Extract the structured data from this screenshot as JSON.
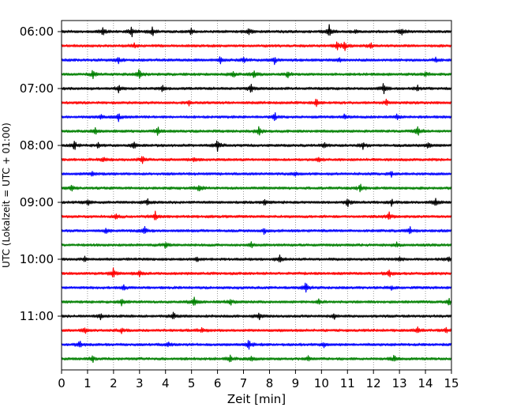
{
  "chart_data": {
    "type": "line",
    "title": "",
    "xlabel": "Zeit  [min]",
    "ylabel": "UTC (Lokalzeit = UTC + 01:00)",
    "xlim": [
      0,
      15
    ],
    "x_ticks": [
      0,
      1,
      2,
      3,
      4,
      5,
      6,
      7,
      8,
      9,
      10,
      11,
      12,
      13,
      14,
      15
    ],
    "x_tick_labels": [
      "0",
      "1",
      "2",
      "3",
      "4",
      "5",
      "6",
      "7",
      "8",
      "9",
      "10",
      "11",
      "12",
      "13",
      "14",
      "15"
    ],
    "x_grid": "dotted vertical lines at every minute",
    "y_tick_labels": [
      "06:00",
      "07:00",
      "08:00",
      "09:00",
      "10:00",
      "11:00"
    ],
    "y_tick_rows": [
      0,
      4,
      8,
      12,
      16,
      20
    ],
    "row_minutes": 15,
    "color_cycle": [
      "#000000",
      "#ff0000",
      "#0000ff",
      "#008000"
    ],
    "traces": [
      {
        "start": "06:00",
        "color": "#000000",
        "events": [
          [
            1.6,
            0.5
          ],
          [
            2.7,
            0.7
          ],
          [
            3.5,
            0.5
          ],
          [
            5.0,
            0.4
          ],
          [
            7.2,
            0.6
          ],
          [
            10.3,
            0.9
          ],
          [
            11.3,
            0.3
          ],
          [
            13.1,
            0.5
          ]
        ]
      },
      {
        "start": "06:15",
        "color": "#ff0000",
        "events": [
          [
            2.8,
            0.3
          ],
          [
            10.6,
            0.6
          ],
          [
            10.9,
            0.5
          ],
          [
            11.9,
            0.3
          ]
        ]
      },
      {
        "start": "06:30",
        "color": "#0000ff",
        "events": [
          [
            2.2,
            0.5
          ],
          [
            6.1,
            0.4
          ],
          [
            7.0,
            0.3
          ],
          [
            8.2,
            0.5
          ],
          [
            10.7,
            0.3
          ],
          [
            14.4,
            0.3
          ]
        ]
      },
      {
        "start": "06:45",
        "color": "#008000",
        "events": [
          [
            1.2,
            0.5
          ],
          [
            3.0,
            0.7
          ],
          [
            6.6,
            0.4
          ],
          [
            7.4,
            0.5
          ],
          [
            8.7,
            0.4
          ],
          [
            14.0,
            0.4
          ]
        ]
      },
      {
        "start": "07:00",
        "color": "#000000",
        "events": [
          [
            2.2,
            0.5
          ],
          [
            3.9,
            0.4
          ],
          [
            7.3,
            0.6
          ],
          [
            12.4,
            0.7
          ],
          [
            13.7,
            0.3
          ]
        ]
      },
      {
        "start": "07:15",
        "color": "#ff0000",
        "events": [
          [
            4.9,
            0.3
          ],
          [
            9.8,
            0.5
          ],
          [
            12.5,
            0.4
          ]
        ]
      },
      {
        "start": "07:30",
        "color": "#0000ff",
        "events": [
          [
            1.5,
            0.3
          ],
          [
            2.2,
            0.5
          ],
          [
            8.2,
            0.6
          ],
          [
            10.9,
            0.3
          ],
          [
            12.9,
            0.4
          ]
        ]
      },
      {
        "start": "07:45",
        "color": "#008000",
        "events": [
          [
            1.3,
            0.4
          ],
          [
            3.7,
            0.5
          ],
          [
            7.6,
            0.7
          ],
          [
            13.7,
            0.6
          ]
        ]
      },
      {
        "start": "08:00",
        "color": "#000000",
        "events": [
          [
            0.5,
            0.6
          ],
          [
            1.4,
            0.3
          ],
          [
            2.8,
            0.5
          ],
          [
            6.0,
            0.7
          ],
          [
            10.1,
            0.3
          ],
          [
            11.6,
            0.4
          ],
          [
            14.1,
            0.4
          ]
        ]
      },
      {
        "start": "08:15",
        "color": "#ff0000",
        "events": [
          [
            1.6,
            0.3
          ],
          [
            3.1,
            0.6
          ],
          [
            5.1,
            0.3
          ],
          [
            9.9,
            0.4
          ]
        ]
      },
      {
        "start": "08:30",
        "color": "#0000ff",
        "events": [
          [
            1.2,
            0.3
          ],
          [
            9.0,
            0.3
          ],
          [
            12.7,
            0.3
          ]
        ]
      },
      {
        "start": "08:45",
        "color": "#008000",
        "events": [
          [
            0.4,
            0.4
          ],
          [
            5.3,
            0.5
          ],
          [
            11.5,
            0.5
          ]
        ]
      },
      {
        "start": "09:00",
        "color": "#000000",
        "events": [
          [
            1.0,
            0.4
          ],
          [
            3.3,
            0.4
          ],
          [
            7.8,
            0.5
          ],
          [
            11.0,
            0.6
          ],
          [
            12.7,
            0.4
          ],
          [
            14.4,
            0.5
          ]
        ]
      },
      {
        "start": "09:15",
        "color": "#ff0000",
        "events": [
          [
            2.1,
            0.3
          ],
          [
            3.6,
            0.7
          ],
          [
            12.6,
            0.5
          ]
        ]
      },
      {
        "start": "09:30",
        "color": "#0000ff",
        "events": [
          [
            1.7,
            0.3
          ],
          [
            3.2,
            0.5
          ],
          [
            7.8,
            0.4
          ],
          [
            13.4,
            0.5
          ]
        ]
      },
      {
        "start": "09:45",
        "color": "#008000",
        "events": [
          [
            4.0,
            0.4
          ],
          [
            7.3,
            0.3
          ],
          [
            12.9,
            0.3
          ]
        ]
      },
      {
        "start": "10:00",
        "color": "#000000",
        "events": [
          [
            0.9,
            0.3
          ],
          [
            5.2,
            0.4
          ],
          [
            8.4,
            0.6
          ],
          [
            13.0,
            0.3
          ],
          [
            14.9,
            0.4
          ]
        ]
      },
      {
        "start": "10:15",
        "color": "#ff0000",
        "events": [
          [
            2.0,
            0.7
          ],
          [
            3.0,
            0.3
          ],
          [
            12.6,
            0.5
          ]
        ]
      },
      {
        "start": "10:30",
        "color": "#0000ff",
        "events": [
          [
            2.4,
            0.3
          ],
          [
            9.4,
            0.6
          ],
          [
            12.7,
            0.3
          ]
        ]
      },
      {
        "start": "10:45",
        "color": "#008000",
        "events": [
          [
            2.3,
            0.4
          ],
          [
            5.1,
            0.6
          ],
          [
            6.5,
            0.4
          ],
          [
            9.9,
            0.3
          ],
          [
            14.9,
            0.4
          ]
        ]
      },
      {
        "start": "11:00",
        "color": "#000000",
        "events": [
          [
            1.5,
            0.3
          ],
          [
            4.3,
            0.6
          ],
          [
            7.6,
            0.5
          ],
          [
            10.5,
            0.3
          ]
        ]
      },
      {
        "start": "11:15",
        "color": "#ff0000",
        "events": [
          [
            0.9,
            0.4
          ],
          [
            2.3,
            0.3
          ],
          [
            5.4,
            0.3
          ],
          [
            13.7,
            0.4
          ],
          [
            14.8,
            0.3
          ]
        ]
      },
      {
        "start": "11:30",
        "color": "#0000ff",
        "events": [
          [
            0.7,
            0.4
          ],
          [
            4.1,
            0.3
          ],
          [
            7.2,
            0.7
          ],
          [
            10.1,
            0.3
          ]
        ]
      },
      {
        "start": "11:45",
        "color": "#008000",
        "events": [
          [
            1.2,
            0.4
          ],
          [
            6.5,
            0.4
          ],
          [
            7.3,
            0.3
          ],
          [
            9.5,
            0.3
          ],
          [
            12.8,
            0.4
          ]
        ]
      }
    ]
  }
}
